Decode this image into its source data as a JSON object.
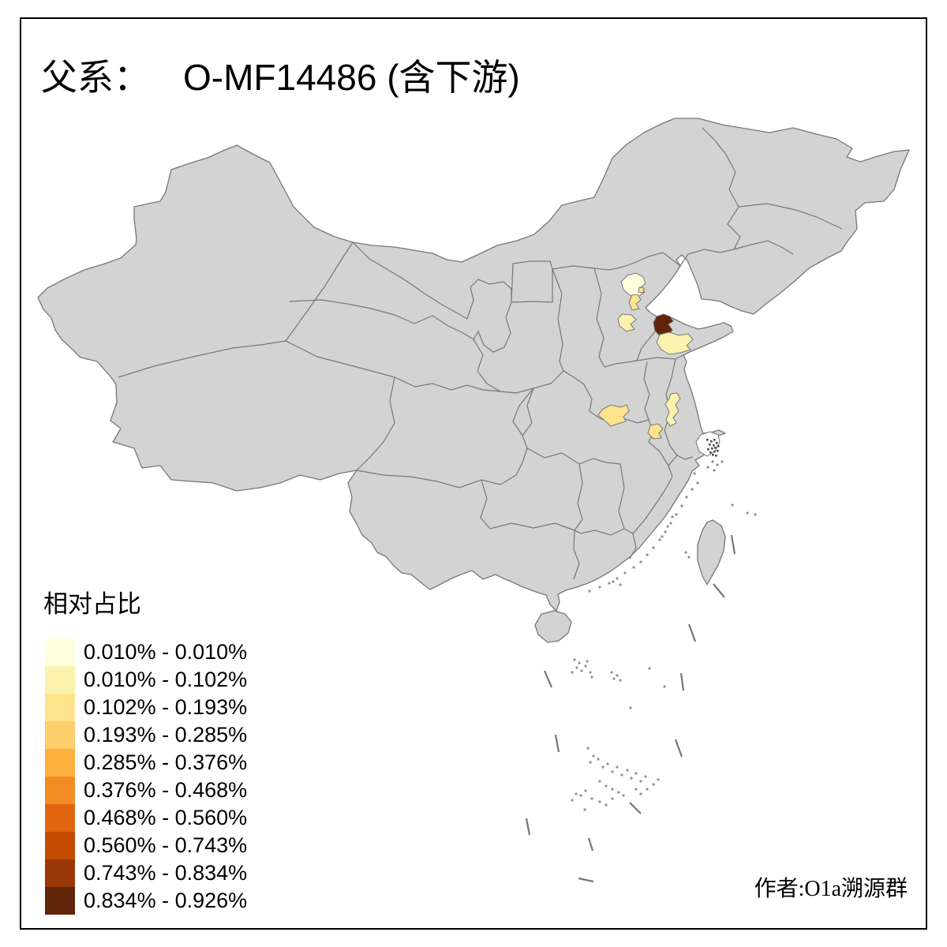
{
  "title": {
    "prefix": "父系：",
    "main": "O-MF14486 (含下游)"
  },
  "legend": {
    "title": "相对占比",
    "bins": [
      {
        "range": "0.010% - 0.010%",
        "color": "#FFFEDF"
      },
      {
        "range": "0.010% - 0.102%",
        "color": "#FBF2AE"
      },
      {
        "range": "0.102% - 0.193%",
        "color": "#FDE38B"
      },
      {
        "range": "0.193% - 0.285%",
        "color": "#FDCE6A"
      },
      {
        "range": "0.285% - 0.376%",
        "color": "#FDB03E"
      },
      {
        "range": "0.376% - 0.468%",
        "color": "#F28C23"
      },
      {
        "range": "0.468% - 0.560%",
        "color": "#E16510"
      },
      {
        "range": "0.560% - 0.743%",
        "color": "#C54B03"
      },
      {
        "range": "0.743% - 0.834%",
        "color": "#993706"
      },
      {
        "range": "0.834% - 0.926%",
        "color": "#602508"
      }
    ]
  },
  "credit": "作者:O1a溯源群",
  "map": {
    "base_fill": "#D3D3D3",
    "border_color": "#777777",
    "background": "#FFFFFF",
    "no_data_fill": "#FFFFFF",
    "islet_fill": "#909090",
    "speckle_fill": "#4A4A4A",
    "highlights": [
      {
        "id": "beijing",
        "bin": 0
      },
      {
        "id": "beijing-district",
        "bin": 2
      },
      {
        "id": "tianjin",
        "bin": 2
      },
      {
        "id": "hebei-region",
        "bin": 1
      },
      {
        "id": "shandong-delta",
        "bin": 9
      },
      {
        "id": "shandong-central",
        "bin": 1
      },
      {
        "id": "henan-region",
        "bin": 2
      },
      {
        "id": "anhui-region",
        "bin": 2
      },
      {
        "id": "jiangsu-region",
        "bin": 1
      },
      {
        "id": "shanghai-region",
        "bin": -1
      }
    ]
  }
}
